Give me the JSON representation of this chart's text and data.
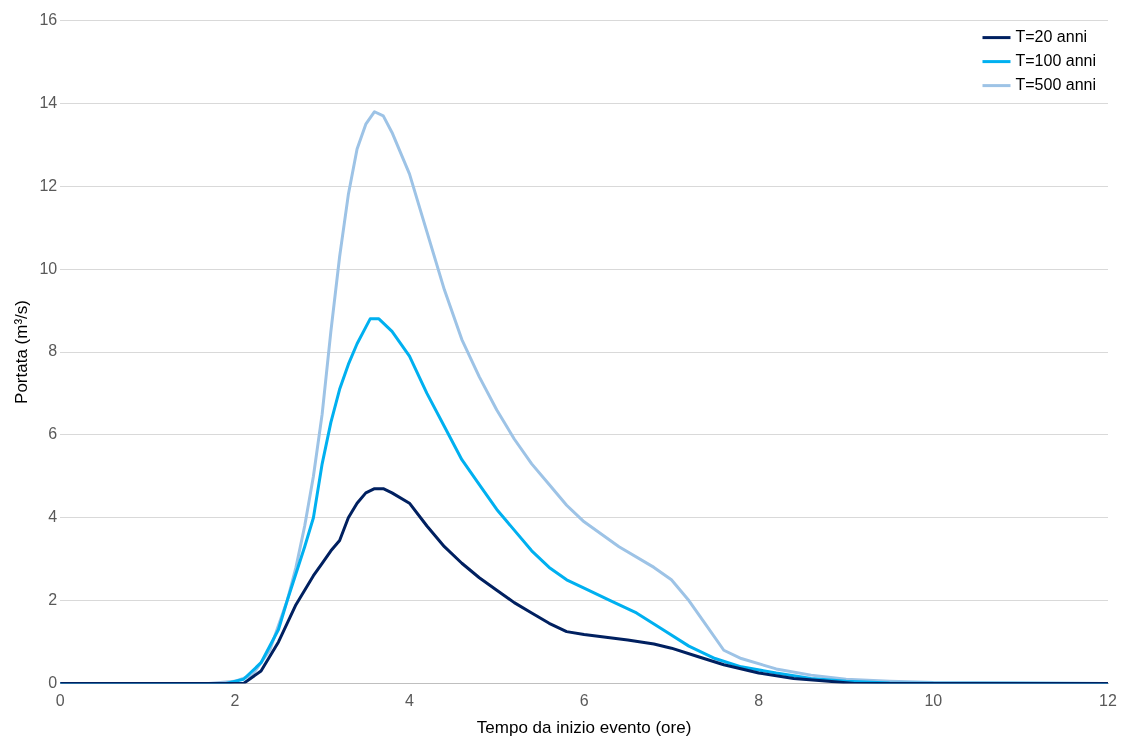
{
  "chart_data": {
    "type": "line",
    "xlabel": "Tempo da inizio evento (ore)",
    "ylabel": "Portata (m³/s)",
    "xlim": [
      0,
      12
    ],
    "xticks": [
      0,
      2,
      4,
      6,
      8,
      10,
      12
    ],
    "ylim": [
      0,
      16
    ],
    "yticks": [
      0,
      2,
      4,
      6,
      8,
      10,
      12,
      14,
      16
    ],
    "grid": "y",
    "legend": "top right",
    "marker": "none",
    "line_style": "solid",
    "series": [
      {
        "name": "T=20 anni",
        "color": "#002060",
        "x": [
          0,
          2.0,
          2.1,
          2.3,
          2.5,
          2.7,
          2.9,
          3.0,
          3.1,
          3.2,
          3.3,
          3.4,
          3.5,
          3.6,
          3.7,
          3.8,
          4.0,
          4.2,
          4.4,
          4.6,
          4.8,
          5.0,
          5.2,
          5.4,
          5.6,
          5.8,
          6.0,
          6.5,
          6.8,
          7.0,
          7.3,
          7.6,
          8.0,
          8.4,
          8.8,
          9.1,
          12
        ],
        "values": [
          0,
          0,
          0,
          0.3,
          1.0,
          1.9,
          2.6,
          2.9,
          3.2,
          3.45,
          4.0,
          4.35,
          4.6,
          4.7,
          4.7,
          4.6,
          4.35,
          3.8,
          3.3,
          2.9,
          2.55,
          2.25,
          1.95,
          1.7,
          1.45,
          1.25,
          1.18,
          1.05,
          0.95,
          0.85,
          0.65,
          0.45,
          0.25,
          0.12,
          0.05,
          0,
          0
        ]
      },
      {
        "name": "T=100 anni",
        "color": "#00b0f0",
        "x": [
          0,
          1.9,
          2.1,
          2.3,
          2.5,
          2.6,
          2.8,
          2.9,
          3.0,
          3.1,
          3.2,
          3.3,
          3.4,
          3.5,
          3.55,
          3.65,
          3.8,
          4.0,
          4.2,
          4.4,
          4.6,
          4.8,
          5.0,
          5.2,
          5.4,
          5.6,
          5.8,
          6.0,
          6.3,
          6.6,
          6.9,
          7.2,
          7.5,
          7.8,
          8.2,
          8.6,
          9.0,
          9.5,
          12
        ],
        "values": [
          0,
          0,
          0.1,
          0.5,
          1.3,
          2.0,
          3.3,
          4.0,
          5.3,
          6.3,
          7.1,
          7.7,
          8.2,
          8.6,
          8.8,
          8.8,
          8.5,
          7.9,
          7.0,
          6.2,
          5.4,
          4.8,
          4.2,
          3.7,
          3.2,
          2.8,
          2.5,
          2.3,
          2.0,
          1.7,
          1.3,
          0.9,
          0.6,
          0.4,
          0.25,
          0.12,
          0.05,
          0.01,
          0
        ]
      },
      {
        "name": "T=500 anni",
        "color": "#9dc3e6",
        "x": [
          0,
          1.7,
          2.0,
          2.2,
          2.4,
          2.6,
          2.7,
          2.8,
          2.9,
          3.0,
          3.1,
          3.2,
          3.3,
          3.4,
          3.5,
          3.6,
          3.7,
          3.8,
          4.0,
          4.2,
          4.4,
          4.6,
          4.8,
          5.0,
          5.2,
          5.4,
          5.6,
          5.8,
          6.0,
          6.4,
          6.8,
          7.0,
          7.2,
          7.4,
          7.6,
          7.8,
          8.2,
          8.6,
          9.0,
          9.5,
          10,
          12
        ],
        "values": [
          0,
          0,
          0.05,
          0.2,
          0.8,
          2.0,
          2.8,
          3.8,
          5.0,
          6.5,
          8.5,
          10.3,
          11.8,
          12.9,
          13.5,
          13.8,
          13.7,
          13.3,
          12.3,
          10.9,
          9.5,
          8.3,
          7.4,
          6.6,
          5.9,
          5.3,
          4.8,
          4.3,
          3.9,
          3.3,
          2.8,
          2.5,
          2.0,
          1.4,
          0.8,
          0.6,
          0.35,
          0.2,
          0.1,
          0.05,
          0.02,
          0
        ]
      }
    ]
  }
}
